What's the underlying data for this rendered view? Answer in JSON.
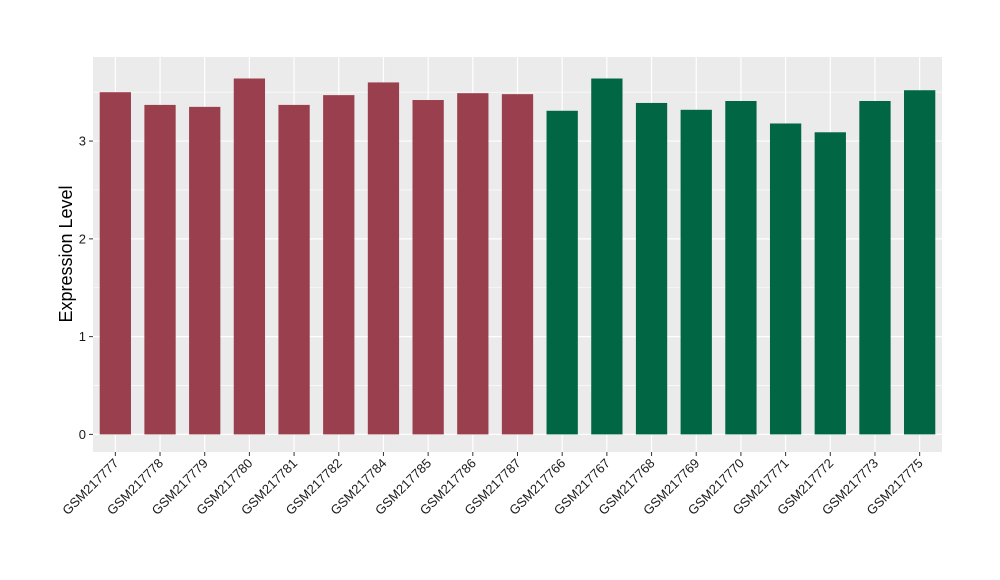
{
  "chart_data": {
    "type": "bar",
    "title": "",
    "xlabel": "",
    "ylabel": "Expression Level",
    "ylim": [
      -0.18,
      3.86
    ],
    "yticks": [
      0,
      1,
      2,
      3
    ],
    "grid": true,
    "background": "#ebebeb",
    "categories": [
      "GSM217777",
      "GSM217778",
      "GSM217779",
      "GSM217780",
      "GSM217781",
      "GSM217782",
      "GSM217784",
      "GSM217785",
      "GSM217786",
      "GSM217787",
      "GSM217766",
      "GSM217767",
      "GSM217768",
      "GSM217769",
      "GSM217770",
      "GSM217771",
      "GSM217772",
      "GSM217773",
      "GSM217775"
    ],
    "values": [
      3.5,
      3.37,
      3.35,
      3.64,
      3.37,
      3.47,
      3.6,
      3.42,
      3.49,
      3.48,
      3.31,
      3.64,
      3.39,
      3.32,
      3.41,
      3.18,
      3.09,
      3.41,
      3.52
    ],
    "group_colors": [
      "#9a3f4d",
      "#9a3f4d",
      "#9a3f4d",
      "#9a3f4d",
      "#9a3f4d",
      "#9a3f4d",
      "#9a3f4d",
      "#9a3f4d",
      "#9a3f4d",
      "#9a3f4d",
      "#006643",
      "#006643",
      "#006643",
      "#006643",
      "#006643",
      "#006643",
      "#006643",
      "#006643",
      "#006643"
    ]
  }
}
